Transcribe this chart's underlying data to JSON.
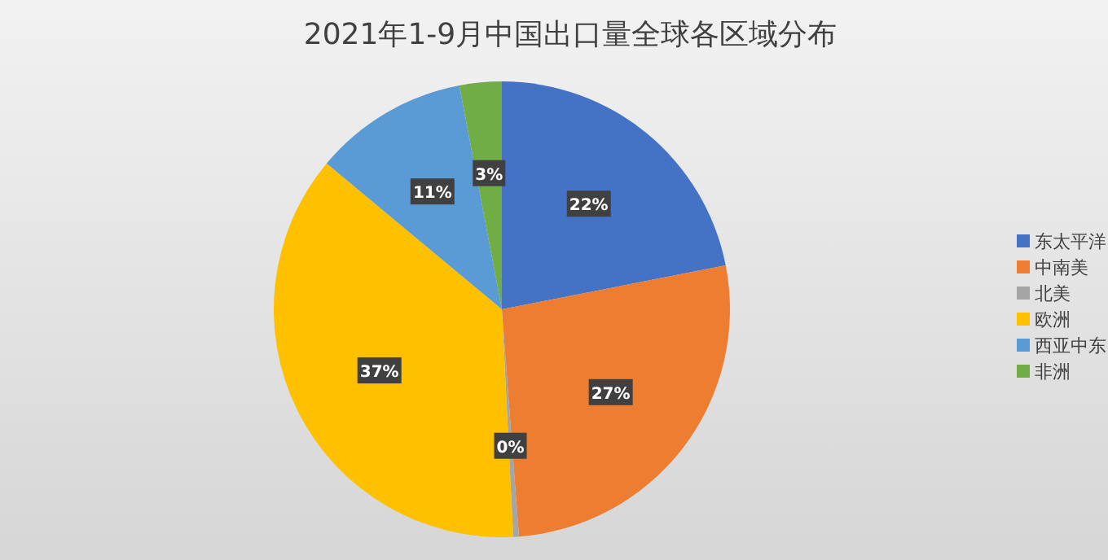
{
  "chart_data": {
    "type": "pie",
    "title": "2021年1-9月中国出口量全球各区域分布",
    "categories": [
      "东太平洋",
      "中南美",
      "北美",
      "欧洲",
      "西亚中东",
      "非洲"
    ],
    "values": [
      22,
      27,
      0.4,
      37,
      11,
      3
    ],
    "colors": [
      "#4472c4",
      "#ed7d31",
      "#a5a5a5",
      "#ffc000",
      "#5b9bd5",
      "#70ad47"
    ],
    "value_labels": [
      "22%",
      "27%",
      "0%",
      "37%",
      "11%",
      "3%"
    ],
    "legend": "right"
  }
}
